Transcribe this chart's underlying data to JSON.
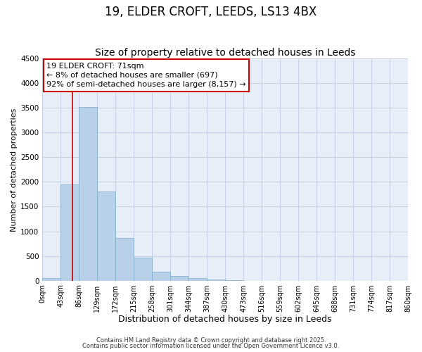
{
  "title1": "19, ELDER CROFT, LEEDS, LS13 4BX",
  "title2": "Size of property relative to detached houses in Leeds",
  "xlabel": "Distribution of detached houses by size in Leeds",
  "ylabel": "Number of detached properties",
  "bin_edges": [
    0,
    43,
    86,
    129,
    172,
    215,
    258,
    301,
    344,
    387,
    430,
    473,
    516,
    559,
    602,
    645,
    688,
    731,
    774,
    817,
    860
  ],
  "bin_labels": [
    "0sqm",
    "43sqm",
    "86sqm",
    "129sqm",
    "172sqm",
    "215sqm",
    "258sqm",
    "301sqm",
    "344sqm",
    "387sqm",
    "430sqm",
    "473sqm",
    "516sqm",
    "559sqm",
    "602sqm",
    "645sqm",
    "688sqm",
    "731sqm",
    "774sqm",
    "817sqm",
    "860sqm"
  ],
  "counts": [
    50,
    1950,
    3520,
    1800,
    860,
    460,
    175,
    95,
    45,
    20,
    5,
    0,
    0,
    0,
    0,
    0,
    0,
    0,
    0,
    0
  ],
  "bar_color": "#b8d0e8",
  "bar_edgecolor": "#7aaac8",
  "vline_x": 71,
  "vline_color": "#cc0000",
  "ylim": [
    0,
    4500
  ],
  "yticks": [
    0,
    500,
    1000,
    1500,
    2000,
    2500,
    3000,
    3500,
    4000,
    4500
  ],
  "annotation_title": "19 ELDER CROFT: 71sqm",
  "annotation_line1": "← 8% of detached houses are smaller (697)",
  "annotation_line2": "92% of semi-detached houses are larger (8,157) →",
  "annotation_box_facecolor": "#ffffff",
  "annotation_box_edgecolor": "#cc0000",
  "footer1": "Contains HM Land Registry data © Crown copyright and database right 2025.",
  "footer2": "Contains public sector information licensed under the Open Government Licence v3.0.",
  "bg_color": "#e8eef8",
  "grid_color": "#c0cce0",
  "title1_fontsize": 12,
  "title2_fontsize": 10,
  "xlabel_fontsize": 9,
  "ylabel_fontsize": 8,
  "tick_fontsize": 7,
  "annot_fontsize": 8,
  "footer_fontsize": 6
}
